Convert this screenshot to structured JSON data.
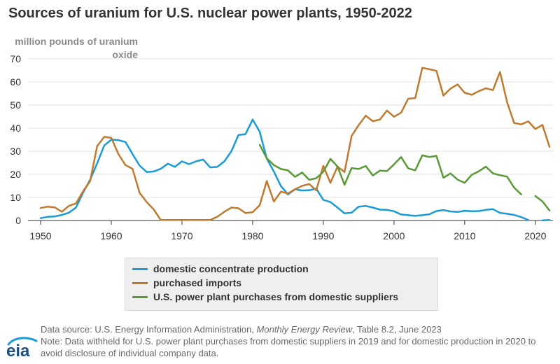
{
  "chart_data": {
    "type": "line",
    "title": "Sources of uranium for U.S. nuclear power plants, 1950-2022",
    "ylabel": "million pounds of uranium oxide",
    "xlabel": "",
    "xlim": [
      1950,
      2022
    ],
    "ylim": [
      0,
      70
    ],
    "x_ticks": [
      1950,
      1960,
      1970,
      1980,
      1990,
      2000,
      2010,
      2020
    ],
    "y_ticks": [
      0,
      10,
      20,
      30,
      40,
      50,
      60,
      70
    ],
    "grid": "horizontal",
    "legend_position": "bottom",
    "series": [
      {
        "name": "domestic concentrate production",
        "color": "#1a9ad6",
        "points": [
          [
            1950,
            1.0
          ],
          [
            1951,
            1.6
          ],
          [
            1952,
            1.8
          ],
          [
            1953,
            2.4
          ],
          [
            1954,
            3.4
          ],
          [
            1955,
            5.6
          ],
          [
            1956,
            12.0
          ],
          [
            1957,
            17.6
          ],
          [
            1958,
            24.8
          ],
          [
            1959,
            32.5
          ],
          [
            1960,
            35.0
          ],
          [
            1961,
            34.8
          ],
          [
            1962,
            34.0
          ],
          [
            1963,
            28.8
          ],
          [
            1964,
            23.8
          ],
          [
            1965,
            21.0
          ],
          [
            1966,
            21.2
          ],
          [
            1967,
            22.4
          ],
          [
            1968,
            24.6
          ],
          [
            1969,
            23.2
          ],
          [
            1970,
            25.6
          ],
          [
            1971,
            24.4
          ],
          [
            1972,
            25.6
          ],
          [
            1973,
            26.4
          ],
          [
            1974,
            23.0
          ],
          [
            1975,
            23.2
          ],
          [
            1976,
            25.6
          ],
          [
            1977,
            30.0
          ],
          [
            1978,
            37.0
          ],
          [
            1979,
            37.4
          ],
          [
            1980,
            43.7
          ],
          [
            1981,
            38.4
          ],
          [
            1982,
            26.8
          ],
          [
            1983,
            21.2
          ],
          [
            1984,
            14.9
          ],
          [
            1985,
            11.3
          ],
          [
            1986,
            13.5
          ],
          [
            1987,
            13.0
          ],
          [
            1988,
            13.1
          ],
          [
            1989,
            13.8
          ],
          [
            1990,
            8.9
          ],
          [
            1991,
            8.0
          ],
          [
            1992,
            5.6
          ],
          [
            1993,
            3.1
          ],
          [
            1994,
            3.4
          ],
          [
            1995,
            6.0
          ],
          [
            1996,
            6.3
          ],
          [
            1997,
            5.6
          ],
          [
            1998,
            4.7
          ],
          [
            1999,
            4.6
          ],
          [
            2000,
            4.0
          ],
          [
            2001,
            2.6
          ],
          [
            2002,
            2.3
          ],
          [
            2003,
            2.0
          ],
          [
            2004,
            2.3
          ],
          [
            2005,
            2.7
          ],
          [
            2006,
            4.1
          ],
          [
            2007,
            4.5
          ],
          [
            2008,
            3.9
          ],
          [
            2009,
            3.7
          ],
          [
            2010,
            4.2
          ],
          [
            2011,
            4.0
          ],
          [
            2012,
            4.1
          ],
          [
            2013,
            4.6
          ],
          [
            2014,
            4.9
          ],
          [
            2015,
            3.3
          ],
          [
            2016,
            2.9
          ],
          [
            2017,
            2.4
          ],
          [
            2018,
            1.5
          ],
          [
            2019,
            0.2
          ],
          [
            2020,
            null
          ],
          [
            2021,
            0.02
          ],
          [
            2022,
            0.2
          ]
        ]
      },
      {
        "name": "purchased imports",
        "color": "#bf7a30",
        "points": [
          [
            1950,
            5.4
          ],
          [
            1951,
            6.0
          ],
          [
            1952,
            5.7
          ],
          [
            1953,
            3.8
          ],
          [
            1954,
            6.3
          ],
          [
            1955,
            7.4
          ],
          [
            1956,
            12.6
          ],
          [
            1957,
            17.0
          ],
          [
            1958,
            32.2
          ],
          [
            1959,
            36.2
          ],
          [
            1960,
            35.8
          ],
          [
            1961,
            28.8
          ],
          [
            1962,
            24.0
          ],
          [
            1963,
            22.4
          ],
          [
            1964,
            12.0
          ],
          [
            1965,
            8.0
          ],
          [
            1966,
            4.8
          ],
          [
            1967,
            0.2
          ],
          [
            1968,
            0.2
          ],
          [
            1969,
            0.2
          ],
          [
            1970,
            0.2
          ],
          [
            1971,
            0.2
          ],
          [
            1972,
            0.2
          ],
          [
            1973,
            0.2
          ],
          [
            1974,
            0.2
          ],
          [
            1975,
            1.6
          ],
          [
            1976,
            3.8
          ],
          [
            1977,
            5.6
          ],
          [
            1978,
            5.3
          ],
          [
            1979,
            3.2
          ],
          [
            1980,
            3.6
          ],
          [
            1981,
            6.6
          ],
          [
            1982,
            17.1
          ],
          [
            1983,
            8.2
          ],
          [
            1984,
            12.5
          ],
          [
            1985,
            11.7
          ],
          [
            1986,
            13.5
          ],
          [
            1987,
            15.0
          ],
          [
            1988,
            15.8
          ],
          [
            1989,
            13.1
          ],
          [
            1990,
            23.7
          ],
          [
            1991,
            16.3
          ],
          [
            1992,
            23.3
          ],
          [
            1993,
            21.0
          ],
          [
            1994,
            36.6
          ],
          [
            1995,
            41.3
          ],
          [
            1996,
            45.4
          ],
          [
            1997,
            43.0
          ],
          [
            1998,
            43.7
          ],
          [
            1999,
            47.6
          ],
          [
            2000,
            44.9
          ],
          [
            2001,
            46.7
          ],
          [
            2002,
            52.7
          ],
          [
            2003,
            53.0
          ],
          [
            2004,
            66.1
          ],
          [
            2005,
            65.5
          ],
          [
            2006,
            64.8
          ],
          [
            2007,
            54.1
          ],
          [
            2008,
            57.1
          ],
          [
            2009,
            58.9
          ],
          [
            2010,
            55.3
          ],
          [
            2011,
            54.4
          ],
          [
            2012,
            56.0
          ],
          [
            2013,
            57.2
          ],
          [
            2014,
            56.5
          ],
          [
            2015,
            64.3
          ],
          [
            2016,
            51.2
          ],
          [
            2017,
            42.2
          ],
          [
            2018,
            41.6
          ],
          [
            2019,
            42.9
          ],
          [
            2020,
            39.6
          ],
          [
            2021,
            41.4
          ],
          [
            2022,
            31.9
          ]
        ]
      },
      {
        "name": "U.S. power plant purchases from domestic suppliers",
        "color": "#5a9a36",
        "points": [
          [
            1981,
            32.8
          ],
          [
            1982,
            26.9
          ],
          [
            1983,
            24.0
          ],
          [
            1984,
            22.3
          ],
          [
            1985,
            21.7
          ],
          [
            1986,
            18.9
          ],
          [
            1987,
            20.8
          ],
          [
            1988,
            17.6
          ],
          [
            1989,
            18.3
          ],
          [
            1990,
            21.1
          ],
          [
            1991,
            26.7
          ],
          [
            1992,
            23.4
          ],
          [
            1993,
            15.5
          ],
          [
            1994,
            22.7
          ],
          [
            1995,
            22.3
          ],
          [
            1996,
            23.6
          ],
          [
            1997,
            19.5
          ],
          [
            1998,
            21.6
          ],
          [
            1999,
            21.4
          ],
          [
            2000,
            24.3
          ],
          [
            2001,
            27.5
          ],
          [
            2002,
            22.6
          ],
          [
            2003,
            21.7
          ],
          [
            2004,
            28.2
          ],
          [
            2005,
            27.5
          ],
          [
            2006,
            28.0
          ],
          [
            2007,
            18.5
          ],
          [
            2008,
            20.4
          ],
          [
            2009,
            17.7
          ],
          [
            2010,
            16.3
          ],
          [
            2011,
            19.8
          ],
          [
            2012,
            21.3
          ],
          [
            2013,
            23.3
          ],
          [
            2014,
            20.4
          ],
          [
            2015,
            19.6
          ],
          [
            2016,
            19.0
          ],
          [
            2017,
            14.2
          ],
          [
            2018,
            11.3
          ],
          [
            2019,
            null
          ],
          [
            2020,
            10.6
          ],
          [
            2021,
            8.3
          ],
          [
            2022,
            4.3
          ]
        ]
      }
    ]
  },
  "footer": {
    "source_prefix": "Data source: U.S. Energy Information Administration, ",
    "source_italic": "Monthly Energy Review",
    "source_suffix": ", Table 8.2, June 2023",
    "note": "Note: Data withheld for U.S. power plant purchases from domestic suppliers in 2019 and for domestic production in 2020 to avoid disclosure of individual company data."
  },
  "logo": {
    "text": "eia",
    "color": "#1d4f80",
    "swoosh_color": "#1a9ad6"
  }
}
